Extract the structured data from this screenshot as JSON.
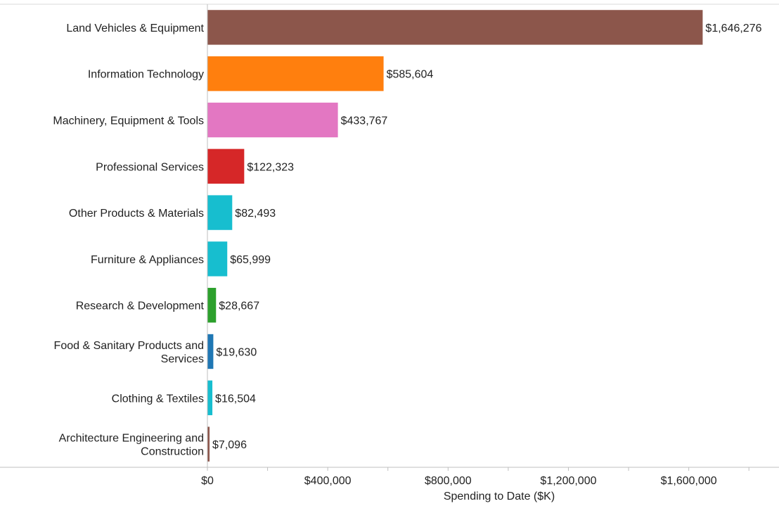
{
  "chart_data": {
    "type": "bar",
    "orientation": "horizontal",
    "categories": [
      "Land Vehicles & Equipment",
      "Information Technology",
      "Machinery, Equipment & Tools",
      "Professional Services",
      "Other Products & Materials",
      "Furniture & Appliances",
      "Research & Development",
      "Food & Sanitary Products and Services",
      "Clothing & Textiles",
      "Architecture Engineering and Construction"
    ],
    "values": [
      1646276,
      585604,
      433767,
      122323,
      82493,
      65999,
      28667,
      19630,
      16504,
      7096
    ],
    "value_labels": [
      "$1,646,276",
      "$585,604",
      "$433,767",
      "$122,323",
      "$82,493",
      "$65,999",
      "$28,667",
      "$19,630",
      "$16,504",
      "$7,096"
    ],
    "colors": [
      "#8c564b",
      "#ff7f0e",
      "#e377c2",
      "#d62728",
      "#17becf",
      "#17becf",
      "#2ca02c",
      "#1f77b4",
      "#17becf",
      "#8c564b"
    ],
    "xlabel": "Spending to Date ($K)",
    "ylabel": "",
    "xlim": [
      0,
      1900000
    ],
    "x_ticks": [
      0,
      400000,
      800000,
      1200000,
      1600000
    ],
    "x_tick_labels": [
      "$0",
      "$400,000",
      "$800,000",
      "$1,200,000",
      "$1,600,000"
    ],
    "minor_tick_step": 200000,
    "grid": false,
    "legend": "none"
  }
}
